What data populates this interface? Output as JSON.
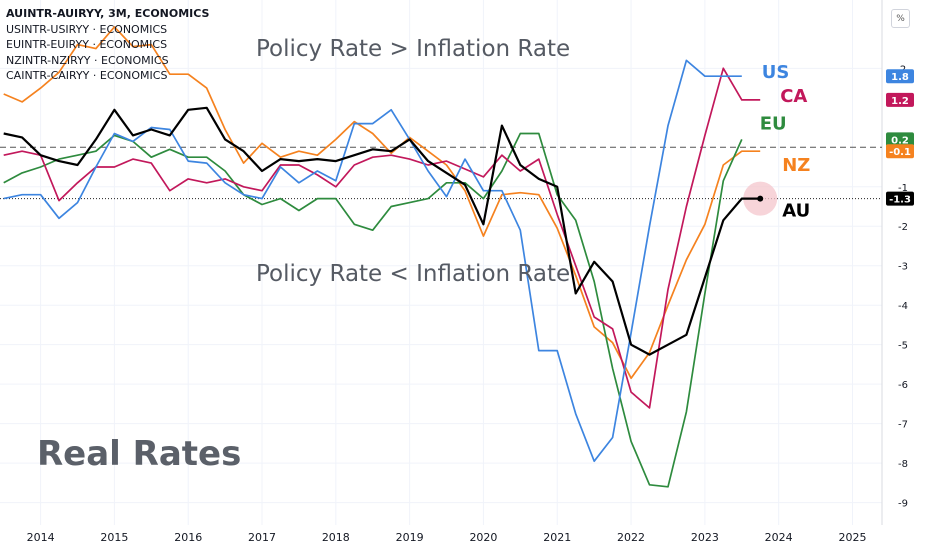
{
  "legend": {
    "lines": [
      "AUINTR-AUIRYY, 3M, ECONOMICS",
      "USINTR-USIRYY · ECONOMICS",
      "EUINTR-EUIRYY · ECONOMICS",
      "NZINTR-NZIRYY · ECONOMICS",
      "CAINTR-CAIRYY · ECONOMICS"
    ]
  },
  "scale_button": "%",
  "annotations": {
    "above": "Policy Rate > Inflation Rate",
    "below": "Policy Rate < Inflation Rate",
    "title": "Real Rates"
  },
  "colors": {
    "AU": "#000000",
    "US": "#3d85e0",
    "CA": "#c2185b",
    "EU": "#2e8b3e",
    "NZ": "#f5821f",
    "grid": "#f0f3fa",
    "axis_text": "#131722"
  },
  "chart_data": {
    "type": "line",
    "x_ticks": [
      "2014",
      "2015",
      "2016",
      "2017",
      "2018",
      "2019",
      "2020",
      "2021",
      "2022",
      "2023",
      "2024",
      "2025"
    ],
    "y_ticks": [
      2,
      -1,
      -2,
      -3,
      -4,
      -5,
      -6,
      -7,
      -8,
      -9
    ],
    "ylim": [
      -9.2,
      3.3
    ],
    "xlim": [
      2013.45,
      2025.4
    ],
    "reference_lines": [
      {
        "value": 0,
        "style": "dashed"
      },
      {
        "value": -1.3,
        "style": "dotted"
      }
    ],
    "series": [
      {
        "name": "AU",
        "label_value": "-1.3",
        "end_label": "AU",
        "x": [
          2013.5,
          2013.75,
          2014.0,
          2014.25,
          2014.5,
          2014.75,
          2015.0,
          2015.25,
          2015.5,
          2015.75,
          2016.0,
          2016.25,
          2016.5,
          2016.75,
          2017.0,
          2017.25,
          2017.5,
          2017.75,
          2018.0,
          2018.25,
          2018.5,
          2018.75,
          2019.0,
          2019.25,
          2019.5,
          2019.75,
          2020.0,
          2020.25,
          2020.5,
          2020.75,
          2021.0,
          2021.25,
          2021.5,
          2021.75,
          2022.0,
          2022.25,
          2022.5,
          2022.75,
          2023.0,
          2023.25,
          2023.5,
          2023.75
        ],
        "y": [
          0.35,
          0.25,
          -0.2,
          -0.35,
          -0.45,
          0.2,
          0.95,
          0.3,
          0.45,
          0.3,
          0.95,
          1.0,
          0.2,
          -0.1,
          -0.6,
          -0.3,
          -0.35,
          -0.3,
          -0.35,
          -0.2,
          -0.05,
          -0.1,
          0.2,
          -0.35,
          -0.65,
          -0.95,
          -1.95,
          0.55,
          -0.45,
          -0.8,
          -1.0,
          -3.7,
          -2.9,
          -3.4,
          -5.0,
          -5.25,
          -5.0,
          -4.75,
          -3.3,
          -1.85,
          -1.3,
          -1.3
        ]
      },
      {
        "name": "US",
        "label_value": "1.8",
        "end_label": "US",
        "x": [
          2013.5,
          2013.75,
          2014.0,
          2014.25,
          2014.5,
          2014.75,
          2015.0,
          2015.25,
          2015.5,
          2015.75,
          2016.0,
          2016.25,
          2016.5,
          2016.75,
          2017.0,
          2017.25,
          2017.5,
          2017.75,
          2018.0,
          2018.25,
          2018.5,
          2018.75,
          2019.0,
          2019.25,
          2019.5,
          2019.75,
          2020.0,
          2020.25,
          2020.5,
          2020.75,
          2021.0,
          2021.25,
          2021.5,
          2021.75,
          2022.0,
          2022.25,
          2022.5,
          2022.75,
          2023.0,
          2023.25,
          2023.5
        ],
        "y": [
          -1.3,
          -1.2,
          -1.2,
          -1.8,
          -1.4,
          -0.5,
          0.35,
          0.15,
          0.5,
          0.45,
          -0.35,
          -0.4,
          -0.9,
          -1.2,
          -1.3,
          -0.5,
          -0.9,
          -0.6,
          -0.85,
          0.6,
          0.6,
          0.95,
          0.2,
          -0.6,
          -1.25,
          -0.3,
          -1.1,
          -1.1,
          -2.1,
          -5.15,
          -5.15,
          -6.75,
          -7.95,
          -7.35,
          -4.7,
          -2.0,
          0.55,
          2.2,
          1.8,
          1.8,
          1.8
        ]
      },
      {
        "name": "CA",
        "label_value": "1.2",
        "end_label": "CA",
        "x": [
          2013.5,
          2013.75,
          2014.0,
          2014.25,
          2014.5,
          2014.75,
          2015.0,
          2015.25,
          2015.5,
          2015.75,
          2016.0,
          2016.25,
          2016.5,
          2016.75,
          2017.0,
          2017.25,
          2017.5,
          2017.75,
          2018.0,
          2018.25,
          2018.5,
          2018.75,
          2019.0,
          2019.25,
          2019.5,
          2019.75,
          2020.0,
          2020.25,
          2020.5,
          2020.75,
          2021.0,
          2021.25,
          2021.5,
          2021.75,
          2022.0,
          2022.25,
          2022.5,
          2022.75,
          2023.0,
          2023.25,
          2023.5,
          2023.75
        ],
        "y": [
          -0.2,
          -0.1,
          -0.2,
          -1.35,
          -0.9,
          -0.5,
          -0.5,
          -0.3,
          -0.4,
          -1.1,
          -0.8,
          -0.9,
          -0.8,
          -1.0,
          -1.1,
          -0.45,
          -0.45,
          -0.7,
          -1.0,
          -0.45,
          -0.25,
          -0.2,
          -0.3,
          -0.45,
          -0.35,
          -0.55,
          -0.75,
          -0.2,
          -0.6,
          -0.3,
          -1.7,
          -3.0,
          -4.3,
          -4.6,
          -6.2,
          -6.6,
          -3.6,
          -1.5,
          0.3,
          2.0,
          1.2,
          1.2
        ]
      },
      {
        "name": "EU",
        "label_value": "0.2",
        "end_label": "EU",
        "x": [
          2013.5,
          2013.75,
          2014.0,
          2014.25,
          2014.5,
          2014.75,
          2015.0,
          2015.25,
          2015.5,
          2015.75,
          2016.0,
          2016.25,
          2016.5,
          2016.75,
          2017.0,
          2017.25,
          2017.5,
          2017.75,
          2018.0,
          2018.25,
          2018.5,
          2018.75,
          2019.0,
          2019.25,
          2019.5,
          2019.75,
          2020.0,
          2020.25,
          2020.5,
          2020.75,
          2021.0,
          2021.25,
          2021.5,
          2021.75,
          2022.0,
          2022.25,
          2022.5,
          2022.75,
          2023.0,
          2023.25,
          2023.5
        ],
        "y": [
          -0.9,
          -0.65,
          -0.5,
          -0.3,
          -0.2,
          -0.1,
          0.3,
          0.15,
          -0.25,
          -0.05,
          -0.25,
          -0.25,
          -0.6,
          -1.2,
          -1.45,
          -1.3,
          -1.6,
          -1.3,
          -1.3,
          -1.95,
          -2.1,
          -1.5,
          -1.4,
          -1.3,
          -0.9,
          -0.9,
          -1.3,
          -0.6,
          0.35,
          0.35,
          -1.2,
          -1.85,
          -3.4,
          -5.6,
          -7.45,
          -8.55,
          -8.6,
          -6.7,
          -3.7,
          -0.85,
          0.2
        ]
      },
      {
        "name": "NZ",
        "label_value": "-0.1",
        "end_label": "NZ",
        "x": [
          2013.5,
          2013.75,
          2014.0,
          2014.25,
          2014.5,
          2014.75,
          2015.0,
          2015.25,
          2015.5,
          2015.75,
          2016.0,
          2016.25,
          2016.5,
          2016.75,
          2017.0,
          2017.25,
          2017.5,
          2017.75,
          2018.0,
          2018.25,
          2018.5,
          2018.75,
          2019.0,
          2019.25,
          2019.5,
          2019.75,
          2020.0,
          2020.25,
          2020.5,
          2020.75,
          2021.0,
          2021.25,
          2021.5,
          2021.75,
          2022.0,
          2022.25,
          2022.5,
          2022.75,
          2023.0,
          2023.25,
          2023.5,
          2023.75
        ],
        "y": [
          1.35,
          1.15,
          1.5,
          1.9,
          2.6,
          2.5,
          3.05,
          2.55,
          2.6,
          1.85,
          1.85,
          1.5,
          0.45,
          -0.4,
          0.1,
          -0.25,
          -0.1,
          -0.2,
          0.2,
          0.65,
          0.35,
          -0.15,
          0.25,
          -0.1,
          -0.45,
          -1.1,
          -2.25,
          -1.2,
          -1.15,
          -1.2,
          -2.05,
          -3.25,
          -4.55,
          -4.95,
          -5.85,
          -5.2,
          -4.0,
          -2.85,
          -1.95,
          -0.45,
          -0.1,
          -0.1
        ]
      }
    ]
  }
}
